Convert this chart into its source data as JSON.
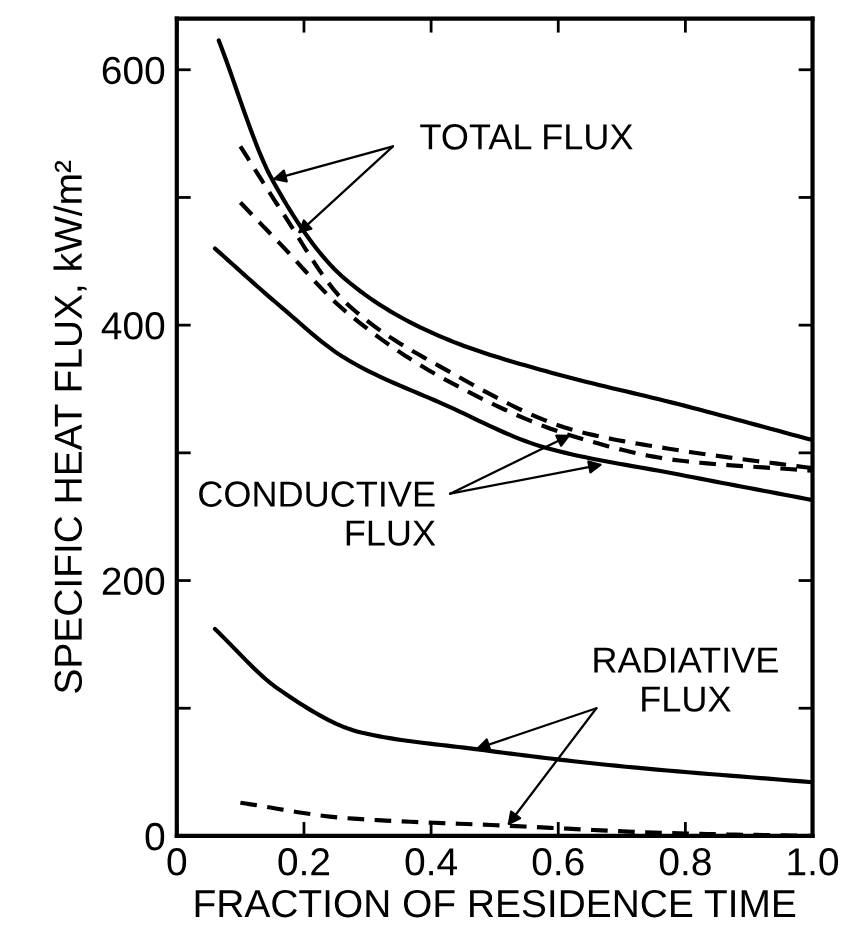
{
  "chart_data": {
    "type": "line",
    "xlabel": "FRACTION OF RESIDENCE TIME",
    "ylabel": "SPECIFIC HEAT FLUX, kW/m²",
    "xlim": [
      0,
      1.0
    ],
    "ylim": [
      0,
      640
    ],
    "xticks": [
      0,
      0.2,
      0.4,
      0.6,
      0.8,
      {
        "value": 1.0,
        "label": "1.0"
      }
    ],
    "yticks": [
      0,
      {
        "value": 100,
        "label": null
      },
      200,
      {
        "value": 300,
        "label": null
      },
      400,
      {
        "value": 500,
        "label": null
      },
      600
    ],
    "grid": false,
    "marker": "none",
    "series": [
      {
        "color": "#000000",
        "line_style": "solid",
        "x": [
          0.066,
          0.15,
          0.265,
          0.42,
          0.58,
          0.79,
          1.0
        ],
        "values": [
          623,
          514,
          436,
          390,
          364,
          338,
          310
        ]
      },
      {
        "color": "#000000",
        "line_style": "dashed",
        "x": [
          0.1,
          0.16,
          0.265,
          0.42,
          0.63,
          0.79,
          1.0
        ],
        "values": [
          540,
          493,
          418,
          366,
          317,
          302,
          288
        ]
      },
      {
        "color": "#000000",
        "line_style": "dashed",
        "x": [
          0.1,
          0.16,
          0.265,
          0.42,
          0.63,
          0.79,
          1.0
        ],
        "values": [
          496,
          465,
          411,
          358,
          312,
          294,
          286
        ]
      },
      {
        "color": "#000000",
        "line_style": "solid",
        "x": [
          0.06,
          0.16,
          0.265,
          0.42,
          0.58,
          0.79,
          1.0
        ],
        "values": [
          460,
          416,
          374,
          338,
          304,
          283,
          263
        ]
      },
      {
        "color": "#000000",
        "line_style": "solid",
        "x": [
          0.06,
          0.16,
          0.29,
          0.47,
          0.69,
          1.0
        ],
        "values": [
          162,
          115,
          81,
          68,
          55,
          42
        ]
      },
      {
        "color": "#000000",
        "line_style": "dashed",
        "x": [
          0.1,
          0.265,
          0.52,
          0.79,
          1.0
        ],
        "values": [
          26,
          14,
          8,
          2,
          0
        ]
      }
    ],
    "annotations": [
      {
        "text": "TOTAL FLUX",
        "x": 0.15,
        "y": 514
      },
      {
        "text": "CONDUCTIVE\nFLUX",
        "x": 0.67,
        "y": 291
      },
      {
        "text": "RADIATIVE\nFLUX",
        "x": 0.47,
        "y": 68
      }
    ]
  }
}
